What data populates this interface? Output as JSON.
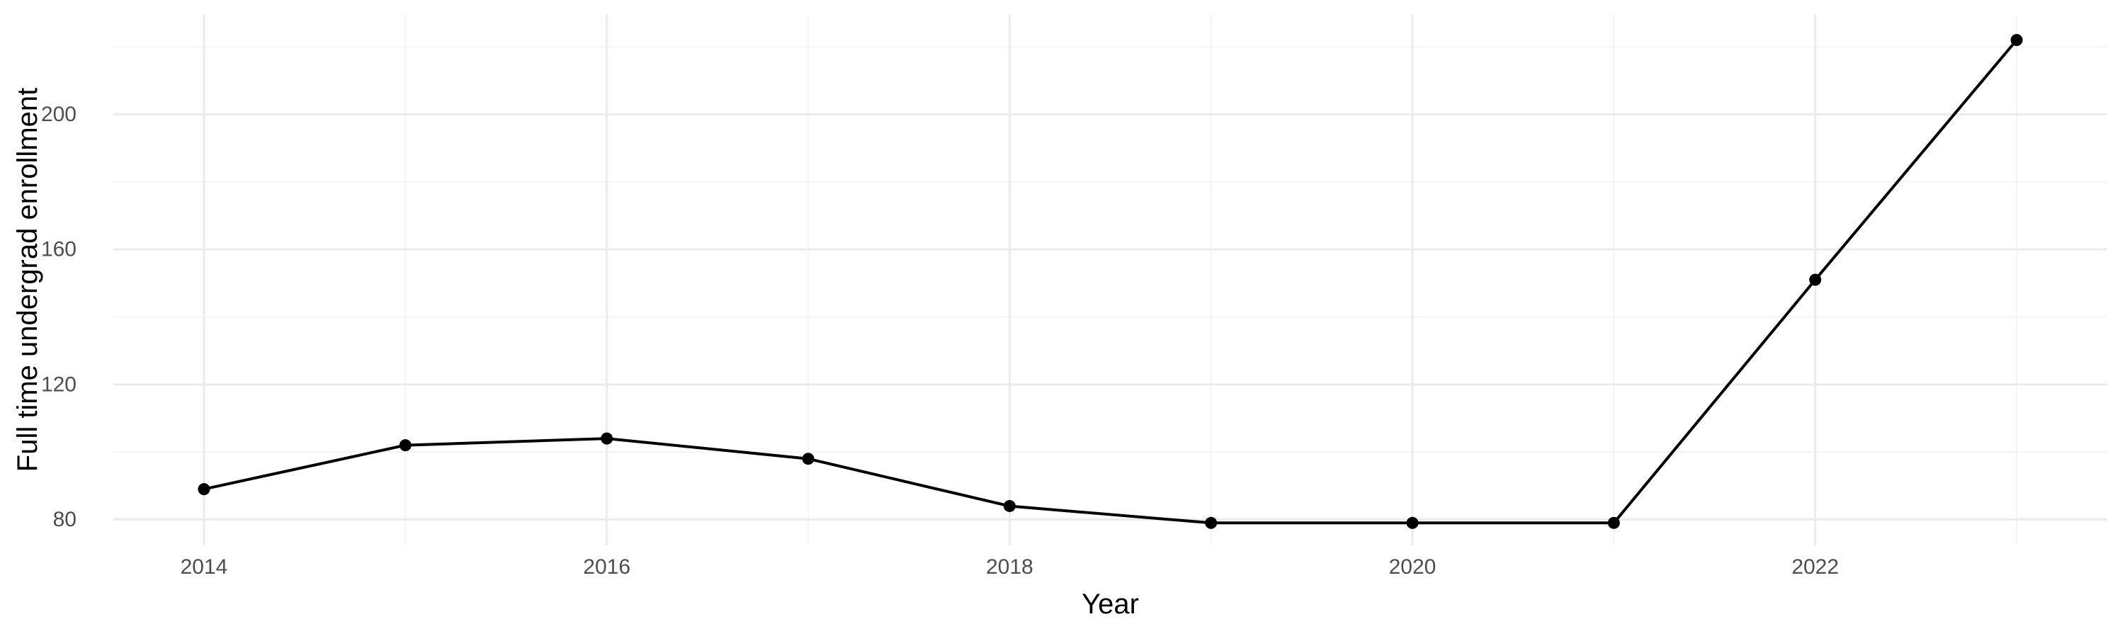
{
  "chart_data": {
    "type": "line",
    "title": "",
    "xlabel": "Year",
    "ylabel": "Full time undergrad enrollment",
    "x": [
      2014,
      2015,
      2016,
      2017,
      2018,
      2019,
      2020,
      2021,
      2022,
      2023
    ],
    "series": [
      {
        "values": [
          89,
          102,
          104,
          98,
          84,
          79,
          79,
          79,
          151,
          222
        ]
      }
    ],
    "x_ticks": [
      2014,
      2016,
      2018,
      2020,
      2022
    ],
    "x_tick_labels": [
      "2014",
      "2016",
      "2018",
      "2020",
      "2022"
    ],
    "y_ticks": [
      80,
      120,
      160,
      200
    ],
    "y_tick_labels": [
      "80",
      "120",
      "160",
      "200"
    ],
    "xlim": [
      2013.55,
      2023.45
    ],
    "ylim": [
      72.35,
      229.65
    ],
    "grid": true,
    "legend": "none",
    "colors": {
      "line": "#000000",
      "points": "#000000",
      "grid": "#ebebeb",
      "background": "#ffffff"
    }
  }
}
